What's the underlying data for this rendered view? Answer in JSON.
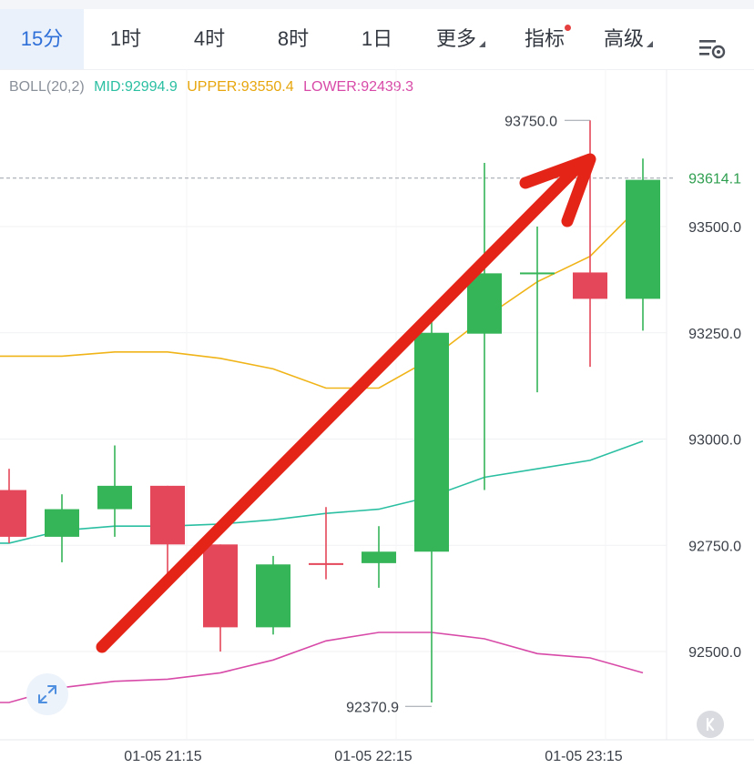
{
  "tabs": [
    {
      "label": "15分",
      "active": true
    },
    {
      "label": "1时",
      "active": false
    },
    {
      "label": "4时",
      "active": false
    },
    {
      "label": "8时",
      "active": false
    },
    {
      "label": "1日",
      "active": false
    },
    {
      "label": "更多",
      "active": false,
      "dropdown": true
    },
    {
      "label": "指标",
      "active": false,
      "badge": true
    },
    {
      "label": "高级",
      "active": false,
      "dropdown": true
    }
  ],
  "settings_icon": "chart-settings-icon",
  "legend": {
    "indicator": "BOLL(20,2)",
    "mid": "MID:92994.9",
    "upper": "UPPER:93550.4",
    "lower": "LOWER:92439.3"
  },
  "colors": {
    "up": "#35b458",
    "down": "#e5475a",
    "mid": "#2bbfa2",
    "upper": "#f0b418",
    "lower": "#d84aa8",
    "accent": "#2f6fd8",
    "arrow": "#e52418",
    "price_label": "#2e9e4f"
  },
  "current_price": "93614.1",
  "icons": {
    "expand": "expand-icon",
    "k": "k-line-icon"
  },
  "chart_data": {
    "type": "candlestick",
    "x_labels": [
      "01-05 21:15",
      "01-05 22:15",
      "01-05 23:15"
    ],
    "y_ticks": [
      "93500.0",
      "93250.0",
      "93000.0",
      "92750.0",
      "92500.0"
    ],
    "ylim": [
      92350,
      93800
    ],
    "high_annotation": {
      "value": 93750.0,
      "label": "93750.0"
    },
    "low_annotation": {
      "value": 92370.9,
      "label": "92370.9"
    },
    "last_price": 93614.1,
    "candles": [
      {
        "open": 92880,
        "close": 92770,
        "high": 92930,
        "low": 92755
      },
      {
        "open": 92770,
        "close": 92835,
        "high": 92870,
        "low": 92710
      },
      {
        "open": 92835,
        "close": 92890,
        "high": 92985,
        "low": 92770
      },
      {
        "open": 92890,
        "close": 92752,
        "high": 92890,
        "low": 92680
      },
      {
        "open": 92752,
        "close": 92557,
        "high": 92752,
        "low": 92500
      },
      {
        "open": 92557,
        "close": 92705,
        "high": 92725,
        "low": 92540
      },
      {
        "open": 92708,
        "close": 92705,
        "high": 92840,
        "low": 92670
      },
      {
        "open": 92708,
        "close": 92735,
        "high": 92795,
        "low": 92650
      },
      {
        "open": 92735,
        "close": 93250,
        "high": 93310,
        "low": 92380
      },
      {
        "open": 93248,
        "close": 93390,
        "high": 93650,
        "low": 92880
      },
      {
        "open": 93390,
        "close": 93392,
        "high": 93500,
        "low": 93110
      },
      {
        "open": 93392,
        "close": 93330,
        "high": 93750,
        "low": 93170
      },
      {
        "open": 93330,
        "close": 93610,
        "high": 93660,
        "low": 93255
      }
    ],
    "boll_upper": [
      93195,
      93195,
      93205,
      93205,
      93190,
      93165,
      93120,
      93120,
      93190,
      93285,
      93370,
      93430,
      93555
    ],
    "boll_mid": [
      92755,
      92785,
      92795,
      92795,
      92800,
      92810,
      92825,
      92835,
      92865,
      92910,
      92930,
      92950,
      92995
    ],
    "boll_lower": [
      92380,
      92415,
      92430,
      92435,
      92450,
      92480,
      92525,
      92545,
      92545,
      92530,
      92495,
      92485,
      92450
    ],
    "annotation_arrow": {
      "direction": "up-right",
      "color": "#e52418"
    }
  }
}
